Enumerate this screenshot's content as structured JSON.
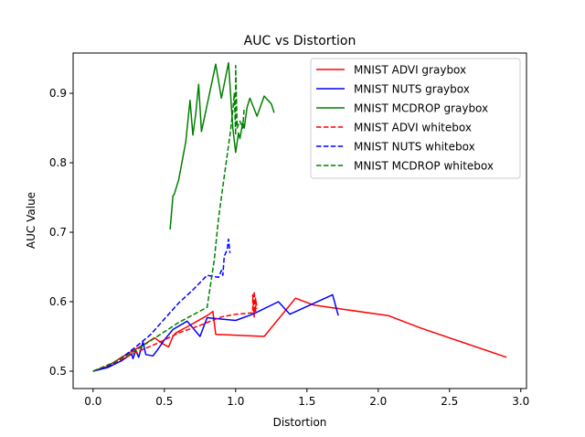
{
  "chart_data": {
    "type": "line",
    "title": "AUC vs Distortion",
    "xlabel": "Distortion",
    "ylabel": "AUC Value",
    "xlim": [
      -0.14,
      3.04
    ],
    "ylim": [
      0.475,
      0.958
    ],
    "xticks": [
      0.0,
      0.5,
      1.0,
      1.5,
      2.0,
      2.5,
      3.0
    ],
    "xtick_labels": [
      "0.0",
      "0.5",
      "1.0",
      "1.5",
      "2.0",
      "2.5",
      "3.0"
    ],
    "yticks": [
      0.5,
      0.6,
      0.7,
      0.8,
      0.9
    ],
    "ytick_labels": [
      "0.5",
      "0.6",
      "0.7",
      "0.8",
      "0.9"
    ],
    "grid": false,
    "legend_position": "top-right",
    "series": [
      {
        "name": "MNIST ADVI graybox",
        "color": "#ff0000",
        "dash": "solid",
        "points": [
          [
            0.0,
            0.5
          ],
          [
            0.1,
            0.507
          ],
          [
            0.2,
            0.52
          ],
          [
            0.3,
            0.532
          ],
          [
            0.37,
            0.54
          ],
          [
            0.43,
            0.548
          ],
          [
            0.5,
            0.538
          ],
          [
            0.53,
            0.535
          ],
          [
            0.56,
            0.55
          ],
          [
            0.58,
            0.555
          ],
          [
            0.67,
            0.565
          ],
          [
            0.8,
            0.58
          ],
          [
            0.84,
            0.586
          ],
          [
            0.86,
            0.553
          ],
          [
            1.2,
            0.55
          ],
          [
            1.42,
            0.605
          ],
          [
            1.55,
            0.595
          ],
          [
            2.07,
            0.58
          ],
          [
            2.3,
            0.562
          ],
          [
            2.9,
            0.52
          ]
        ]
      },
      {
        "name": "MNIST NUTS graybox",
        "color": "#0000ff",
        "dash": "solid",
        "points": [
          [
            0.0,
            0.5
          ],
          [
            0.1,
            0.505
          ],
          [
            0.2,
            0.515
          ],
          [
            0.25,
            0.522
          ],
          [
            0.27,
            0.525
          ],
          [
            0.28,
            0.518
          ],
          [
            0.3,
            0.53
          ],
          [
            0.32,
            0.52
          ],
          [
            0.35,
            0.542
          ],
          [
            0.37,
            0.524
          ],
          [
            0.42,
            0.522
          ],
          [
            0.45,
            0.53
          ],
          [
            0.5,
            0.545
          ],
          [
            0.56,
            0.56
          ],
          [
            0.66,
            0.572
          ],
          [
            0.75,
            0.55
          ],
          [
            0.8,
            0.577
          ],
          [
            1.0,
            0.573
          ],
          [
            1.12,
            0.582
          ],
          [
            1.3,
            0.6
          ],
          [
            1.38,
            0.582
          ],
          [
            1.68,
            0.61
          ],
          [
            1.72,
            0.58
          ]
        ]
      },
      {
        "name": "MNIST MCDROP graybox",
        "color": "#008000",
        "dash": "solid",
        "points": [
          [
            0.54,
            0.704
          ],
          [
            0.56,
            0.752
          ],
          [
            0.57,
            0.755
          ],
          [
            0.6,
            0.775
          ],
          [
            0.65,
            0.83
          ],
          [
            0.68,
            0.89
          ],
          [
            0.7,
            0.84
          ],
          [
            0.72,
            0.87
          ],
          [
            0.74,
            0.913
          ],
          [
            0.76,
            0.845
          ],
          [
            0.86,
            0.942
          ],
          [
            0.9,
            0.893
          ],
          [
            0.95,
            0.944
          ],
          [
            0.98,
            0.85
          ],
          [
            1.0,
            0.815
          ],
          [
            1.02,
            0.843
          ],
          [
            1.03,
            0.835
          ],
          [
            1.05,
            0.858
          ],
          [
            1.06,
            0.85
          ],
          [
            1.08,
            0.88
          ],
          [
            1.1,
            0.893
          ],
          [
            1.15,
            0.867
          ],
          [
            1.2,
            0.896
          ],
          [
            1.25,
            0.885
          ],
          [
            1.27,
            0.872
          ]
        ]
      },
      {
        "name": "MNIST ADVI whitebox",
        "color": "#ff0000",
        "dash": "dashed",
        "points": [
          [
            0.0,
            0.5
          ],
          [
            0.15,
            0.512
          ],
          [
            0.3,
            0.527
          ],
          [
            0.45,
            0.54
          ],
          [
            0.6,
            0.555
          ],
          [
            0.75,
            0.566
          ],
          [
            0.9,
            0.578
          ],
          [
            1.0,
            0.582
          ],
          [
            1.12,
            0.584
          ],
          [
            1.12,
            0.61
          ],
          [
            1.13,
            0.578
          ],
          [
            1.13,
            0.615
          ],
          [
            1.14,
            0.585
          ],
          [
            1.14,
            0.605
          ],
          [
            1.15,
            0.59
          ]
        ]
      },
      {
        "name": "MNIST NUTS whitebox",
        "color": "#0000ff",
        "dash": "dashed",
        "points": [
          [
            0.0,
            0.5
          ],
          [
            0.1,
            0.506
          ],
          [
            0.2,
            0.519
          ],
          [
            0.3,
            0.535
          ],
          [
            0.4,
            0.552
          ],
          [
            0.5,
            0.575
          ],
          [
            0.6,
            0.598
          ],
          [
            0.7,
            0.617
          ],
          [
            0.8,
            0.638
          ],
          [
            0.88,
            0.635
          ],
          [
            0.9,
            0.645
          ],
          [
            0.91,
            0.638
          ],
          [
            0.92,
            0.665
          ],
          [
            0.94,
            0.675
          ],
          [
            0.95,
            0.69
          ],
          [
            0.96,
            0.67
          ]
        ]
      },
      {
        "name": "MNIST MCDROP whitebox",
        "color": "#008000",
        "dash": "dashed",
        "points": [
          [
            0.0,
            0.5
          ],
          [
            0.15,
            0.513
          ],
          [
            0.3,
            0.53
          ],
          [
            0.45,
            0.55
          ],
          [
            0.6,
            0.57
          ],
          [
            0.8,
            0.592
          ],
          [
            0.85,
            0.66
          ],
          [
            0.88,
            0.72
          ],
          [
            0.92,
            0.78
          ],
          [
            0.96,
            0.84
          ],
          [
            0.98,
            0.875
          ],
          [
            0.99,
            0.9
          ],
          [
            1.0,
            0.84
          ],
          [
            1.0,
            0.94
          ],
          [
            1.01,
            0.85
          ],
          [
            1.03,
            0.86
          ],
          [
            1.05,
            0.85
          ],
          [
            1.06,
            0.88
          ]
        ]
      }
    ]
  }
}
